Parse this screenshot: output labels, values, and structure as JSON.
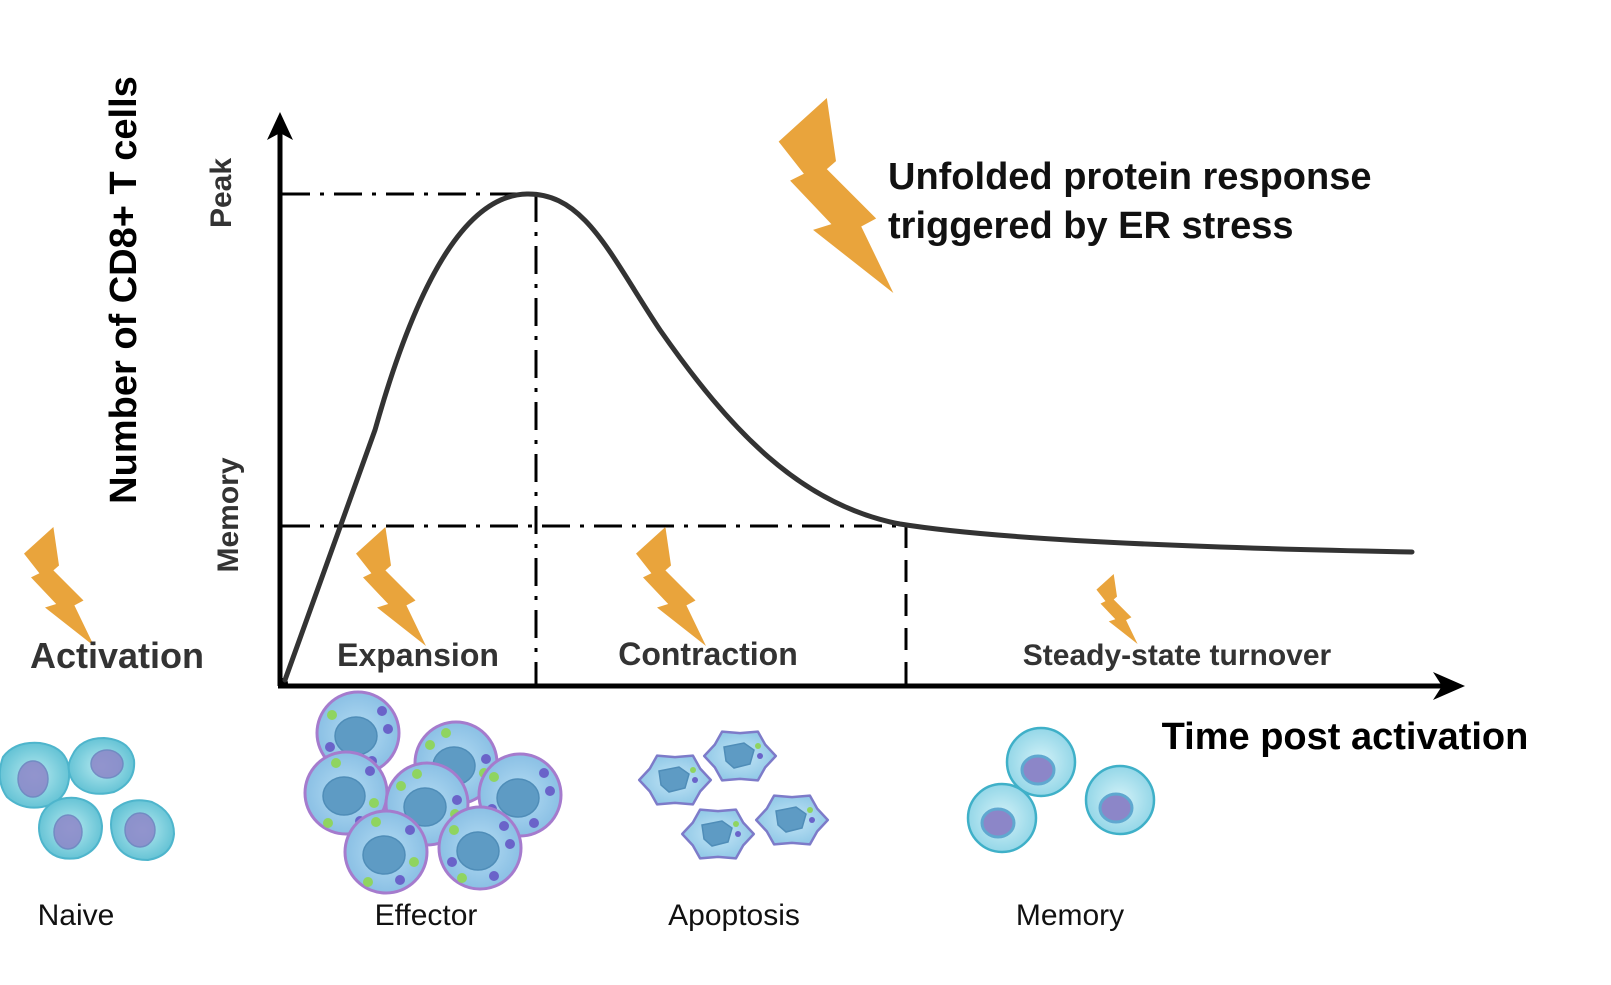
{
  "axes": {
    "y_label": "Number of CD8+ T cells",
    "x_label": "Time post activation",
    "y_ticks": [
      "Peak",
      "Memory"
    ]
  },
  "annotation": {
    "line1": "Unfolded protein response",
    "line2": "triggered by ER stress"
  },
  "phases": [
    "Activation",
    "Expansion",
    "Contraction",
    "Steady-state turnover"
  ],
  "cell_types": [
    "Naive",
    "Effector",
    "Apoptosis",
    "Memory"
  ],
  "colors": {
    "bolt": "#E9A43C",
    "curve": "#333333",
    "axis": "#000000",
    "naive_fill": "#6CC7D8",
    "effector_fill": "#8EC6E8",
    "effector_border": "#A57BCD",
    "apoptosis_fill": "#9AD0EC",
    "memory_fill": "#A6DCEB",
    "nucleus_blue": "#5E95C7",
    "nucleus_purple": "#8C86C8",
    "granule_green": "#8FD460",
    "granule_purple": "#6A63C9"
  },
  "icons": [
    "lightning-bolt-icon",
    "naive-cell-icon",
    "effector-cell-icon",
    "apoptotic-cell-icon",
    "memory-cell-icon"
  ]
}
